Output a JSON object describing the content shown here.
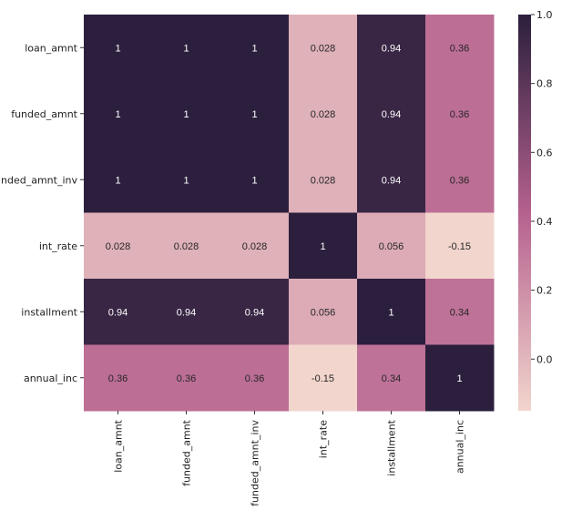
{
  "chart_data": {
    "type": "heatmap",
    "title": "",
    "row_labels": [
      "loan_amnt",
      "funded_amnt",
      "funded_amnt_inv",
      "int_rate",
      "installment",
      "annual_inc"
    ],
    "col_labels": [
      "loan_amnt",
      "funded_amnt",
      "funded_amnt_inv",
      "int_rate",
      "installment",
      "annual_inc"
    ],
    "values": [
      [
        1,
        1,
        1,
        0.028,
        0.94,
        0.36
      ],
      [
        1,
        1,
        1,
        0.028,
        0.94,
        0.36
      ],
      [
        1,
        1,
        1,
        0.028,
        0.94,
        0.36
      ],
      [
        0.028,
        0.028,
        0.028,
        1,
        0.056,
        -0.15
      ],
      [
        0.94,
        0.94,
        0.94,
        0.056,
        1,
        0.34
      ],
      [
        0.36,
        0.36,
        0.36,
        -0.15,
        0.34,
        1
      ]
    ],
    "cell_labels": [
      [
        "1",
        "1",
        "1",
        "0.028",
        "0.94",
        "0.36"
      ],
      [
        "1",
        "1",
        "1",
        "0.028",
        "0.94",
        "0.36"
      ],
      [
        "1",
        "1",
        "1",
        "0.028",
        "0.94",
        "0.36"
      ],
      [
        "0.028",
        "0.028",
        "0.028",
        "1",
        "0.056",
        "-0.15"
      ],
      [
        "0.94",
        "0.94",
        "0.94",
        "0.056",
        "1",
        "0.34"
      ],
      [
        "0.36",
        "0.36",
        "0.36",
        "-0.15",
        "0.34",
        "1"
      ]
    ],
    "colorbar": {
      "vmin": -0.15,
      "vmax": 1.0,
      "ticks": [
        1.0,
        0.8,
        0.6,
        0.4,
        0.2,
        0.0
      ],
      "tick_labels": [
        "1.0",
        "0.8",
        "0.6",
        "0.4",
        "0.2",
        "0.0"
      ],
      "color_low": "#f2d5cd",
      "color_mid": "#b5618e",
      "color_high": "#2b1f3d"
    }
  }
}
